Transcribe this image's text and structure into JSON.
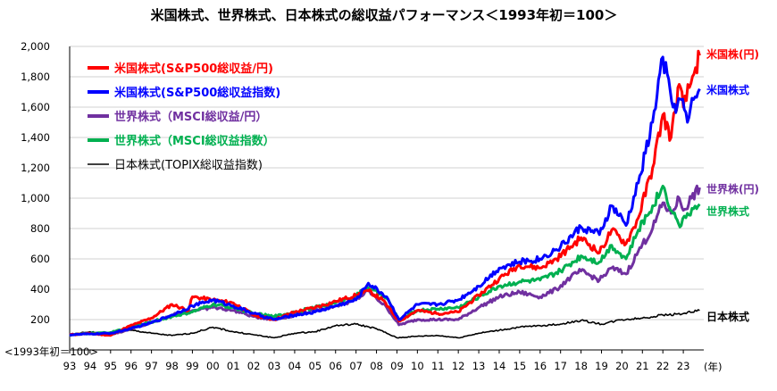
{
  "chart_data": {
    "type": "line",
    "title": "米国株式、世界株式、日本株式の総収益パフォーマンス＜1993年初＝100＞",
    "base_note": "<1993年初＝100>",
    "xlabel": "(年)",
    "ylabel": "",
    "ylim": [
      0,
      2000
    ],
    "xlim": [
      1993.0,
      2024.0
    ],
    "y_ticks": [
      200,
      400,
      600,
      800,
      1000,
      1200,
      1400,
      1600,
      1800,
      2000
    ],
    "y_tick_labels": [
      "200",
      "400",
      "600",
      "800",
      "1,000",
      "1,200",
      "1,400",
      "1,600",
      "1,800",
      "2,000"
    ],
    "x_tick_labels": [
      "93",
      "94",
      "95",
      "96",
      "97",
      "98",
      "99",
      "00",
      "01",
      "02",
      "03",
      "04",
      "05",
      "06",
      "07",
      "08",
      "09",
      "10",
      "11",
      "12",
      "13",
      "14",
      "15",
      "16",
      "17",
      "18",
      "19",
      "20",
      "21",
      "22",
      "23"
    ],
    "grid": true,
    "legend_position": "top-left",
    "series": [
      {
        "name": "米国株式(S&P500総収益/円)",
        "end_label": "米国株(円)",
        "color": "#ff0000",
        "bold": true,
        "points": [
          [
            1993.0,
            100
          ],
          [
            1994.0,
            108
          ],
          [
            1995.0,
            96
          ],
          [
            1995.8,
            150
          ],
          [
            1997.0,
            210
          ],
          [
            1998.0,
            300
          ],
          [
            1998.8,
            260
          ],
          [
            1999.0,
            350
          ],
          [
            2000.0,
            330
          ],
          [
            2001.0,
            310
          ],
          [
            2002.0,
            230
          ],
          [
            2003.0,
            200
          ],
          [
            2004.0,
            250
          ],
          [
            2005.0,
            280
          ],
          [
            2006.0,
            320
          ],
          [
            2007.0,
            360
          ],
          [
            2007.6,
            390
          ],
          [
            2008.3,
            330
          ],
          [
            2009.1,
            190
          ],
          [
            2010.0,
            260
          ],
          [
            2011.0,
            240
          ],
          [
            2012.0,
            250
          ],
          [
            2013.0,
            360
          ],
          [
            2014.0,
            470
          ],
          [
            2015.0,
            560
          ],
          [
            2016.0,
            540
          ],
          [
            2016.8,
            600
          ],
          [
            2017.5,
            680
          ],
          [
            2018.0,
            740
          ],
          [
            2018.9,
            640
          ],
          [
            2019.5,
            790
          ],
          [
            2020.2,
            700
          ],
          [
            2020.8,
            870
          ],
          [
            2021.5,
            1200
          ],
          [
            2022.0,
            1550
          ],
          [
            2022.4,
            1400
          ],
          [
            2022.8,
            1750
          ],
          [
            2023.0,
            1600
          ],
          [
            2023.3,
            1730
          ],
          [
            2023.6,
            1860
          ],
          [
            2023.8,
            1940
          ]
        ]
      },
      {
        "name": "米国株式(S&P500総収益指数)",
        "end_label": "米国株式",
        "color": "#0000ff",
        "bold": true,
        "points": [
          [
            1993.0,
            100
          ],
          [
            1994.0,
            105
          ],
          [
            1995.0,
            110
          ],
          [
            1996.0,
            140
          ],
          [
            1997.0,
            180
          ],
          [
            1998.0,
            230
          ],
          [
            1999.0,
            290
          ],
          [
            2000.0,
            330
          ],
          [
            2001.0,
            290
          ],
          [
            2002.0,
            240
          ],
          [
            2003.0,
            200
          ],
          [
            2004.0,
            230
          ],
          [
            2005.0,
            250
          ],
          [
            2006.0,
            290
          ],
          [
            2007.0,
            330
          ],
          [
            2007.6,
            440
          ],
          [
            2008.5,
            350
          ],
          [
            2009.1,
            200
          ],
          [
            2010.0,
            300
          ],
          [
            2011.0,
            300
          ],
          [
            2012.0,
            330
          ],
          [
            2013.0,
            420
          ],
          [
            2014.0,
            540
          ],
          [
            2015.0,
            580
          ],
          [
            2016.0,
            600
          ],
          [
            2017.0,
            680
          ],
          [
            2018.0,
            810
          ],
          [
            2018.9,
            760
          ],
          [
            2019.5,
            950
          ],
          [
            2020.2,
            820
          ],
          [
            2020.8,
            1100
          ],
          [
            2021.5,
            1500
          ],
          [
            2022.0,
            1930
          ],
          [
            2022.5,
            1600
          ],
          [
            2022.9,
            1650
          ],
          [
            2023.2,
            1500
          ],
          [
            2023.5,
            1650
          ],
          [
            2023.8,
            1720
          ]
        ]
      },
      {
        "name": "世界株式（MSCI総収益/円）",
        "end_label": "世界株(円)",
        "color": "#7030a0",
        "bold": true,
        "points": [
          [
            1993.0,
            100
          ],
          [
            1994.0,
            110
          ],
          [
            1995.0,
            100
          ],
          [
            1996.0,
            140
          ],
          [
            1997.0,
            180
          ],
          [
            1998.0,
            230
          ],
          [
            1999.0,
            260
          ],
          [
            2000.0,
            280
          ],
          [
            2001.0,
            260
          ],
          [
            2002.0,
            220
          ],
          [
            2003.0,
            200
          ],
          [
            2004.0,
            230
          ],
          [
            2005.0,
            260
          ],
          [
            2006.0,
            290
          ],
          [
            2007.0,
            330
          ],
          [
            2007.6,
            390
          ],
          [
            2008.5,
            280
          ],
          [
            2009.1,
            165
          ],
          [
            2010.0,
            200
          ],
          [
            2011.0,
            200
          ],
          [
            2012.0,
            200
          ],
          [
            2013.0,
            280
          ],
          [
            2014.0,
            350
          ],
          [
            2015.0,
            380
          ],
          [
            2016.0,
            350
          ],
          [
            2016.8,
            400
          ],
          [
            2017.5,
            480
          ],
          [
            2018.0,
            520
          ],
          [
            2018.9,
            460
          ],
          [
            2019.5,
            540
          ],
          [
            2020.2,
            500
          ],
          [
            2020.8,
            650
          ],
          [
            2021.5,
            800
          ],
          [
            2022.0,
            970
          ],
          [
            2022.4,
            900
          ],
          [
            2022.8,
            1000
          ],
          [
            2023.0,
            920
          ],
          [
            2023.4,
            1000
          ],
          [
            2023.8,
            1070
          ]
        ]
      },
      {
        "name": "世界株式（MSCI総収益指数）",
        "end_label": "世界株式",
        "color": "#00b050",
        "bold": true,
        "points": [
          [
            1993.0,
            100
          ],
          [
            1994.0,
            108
          ],
          [
            1995.0,
            115
          ],
          [
            1996.0,
            150
          ],
          [
            1997.0,
            185
          ],
          [
            1998.0,
            220
          ],
          [
            1999.0,
            250
          ],
          [
            2000.0,
            300
          ],
          [
            2001.0,
            280
          ],
          [
            2002.0,
            240
          ],
          [
            2003.0,
            220
          ],
          [
            2004.0,
            250
          ],
          [
            2005.0,
            280
          ],
          [
            2006.0,
            310
          ],
          [
            2007.0,
            360
          ],
          [
            2007.6,
            410
          ],
          [
            2008.5,
            340
          ],
          [
            2009.1,
            200
          ],
          [
            2010.0,
            260
          ],
          [
            2011.0,
            270
          ],
          [
            2012.0,
            280
          ],
          [
            2013.0,
            350
          ],
          [
            2014.0,
            420
          ],
          [
            2015.0,
            450
          ],
          [
            2016.0,
            460
          ],
          [
            2017.0,
            520
          ],
          [
            2018.0,
            620
          ],
          [
            2018.9,
            580
          ],
          [
            2019.5,
            690
          ],
          [
            2020.2,
            600
          ],
          [
            2020.8,
            790
          ],
          [
            2021.5,
            950
          ],
          [
            2022.0,
            1080
          ],
          [
            2022.5,
            900
          ],
          [
            2022.9,
            820
          ],
          [
            2023.2,
            900
          ],
          [
            2023.5,
            930
          ],
          [
            2023.8,
            960
          ]
        ]
      },
      {
        "name": "日本株式(TOPIX総収益指数)",
        "end_label": "日本株式",
        "color": "#000000",
        "bold": false,
        "points": [
          [
            1993.0,
            100
          ],
          [
            1994.0,
            120
          ],
          [
            1995.0,
            100
          ],
          [
            1996.0,
            130
          ],
          [
            1997.0,
            110
          ],
          [
            1998.0,
            95
          ],
          [
            1999.0,
            110
          ],
          [
            2000.0,
            150
          ],
          [
            2001.0,
            120
          ],
          [
            2002.0,
            100
          ],
          [
            2003.0,
            80
          ],
          [
            2004.0,
            110
          ],
          [
            2005.0,
            120
          ],
          [
            2006.0,
            160
          ],
          [
            2007.0,
            170
          ],
          [
            2008.0,
            140
          ],
          [
            2009.0,
            80
          ],
          [
            2010.0,
            90
          ],
          [
            2011.0,
            95
          ],
          [
            2012.0,
            80
          ],
          [
            2013.0,
            110
          ],
          [
            2014.0,
            130
          ],
          [
            2015.0,
            150
          ],
          [
            2016.0,
            160
          ],
          [
            2017.0,
            170
          ],
          [
            2018.0,
            195
          ],
          [
            2019.0,
            170
          ],
          [
            2020.0,
            200
          ],
          [
            2021.0,
            210
          ],
          [
            2022.0,
            230
          ],
          [
            2023.0,
            240
          ],
          [
            2023.8,
            260
          ]
        ]
      }
    ]
  }
}
